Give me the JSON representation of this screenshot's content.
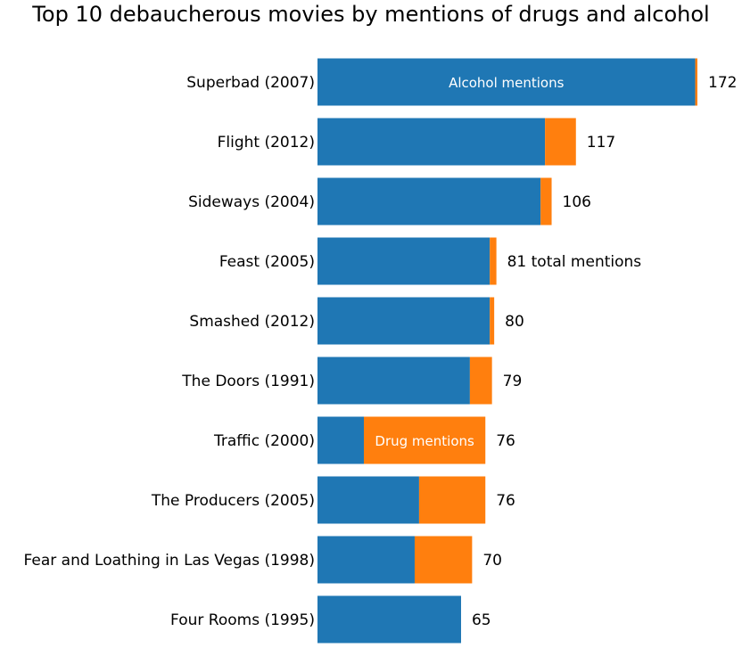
{
  "chart_data": {
    "type": "bar",
    "orientation": "horizontal",
    "stacked": true,
    "title": "Top 10 debaucherous movies by mentions of drugs and alcohol",
    "xlabel": "",
    "ylabel": "",
    "xlim": [
      0,
      172
    ],
    "grid": false,
    "categories": [
      "Superbad (2007)",
      "Flight (2012)",
      "Sideways (2004)",
      "Feast (2005)",
      "Smashed (2012)",
      "The Doors (1991)",
      "Traffic (2000)",
      "The Producers (2005)",
      "Fear and Loathing in Las Vegas (1998)",
      "Four Rooms (1995)"
    ],
    "series": [
      {
        "name": "Alcohol mentions",
        "color": "#1f77b4",
        "values": [
          171,
          103,
          101,
          78,
          78,
          69,
          21,
          46,
          44,
          65
        ]
      },
      {
        "name": "Drug mentions",
        "color": "#ff7f0e",
        "values": [
          1,
          14,
          5,
          3,
          2,
          10,
          55,
          30,
          26,
          0
        ]
      }
    ],
    "totals": [
      "172",
      "117",
      "106",
      "81 total mentions",
      "80",
      "79",
      "76",
      "76",
      "70",
      "65"
    ],
    "annotations": [
      {
        "text": "Alcohol mentions",
        "series": 0,
        "category": 0
      },
      {
        "text": "Drug mentions",
        "series": 1,
        "category": 6
      }
    ]
  }
}
